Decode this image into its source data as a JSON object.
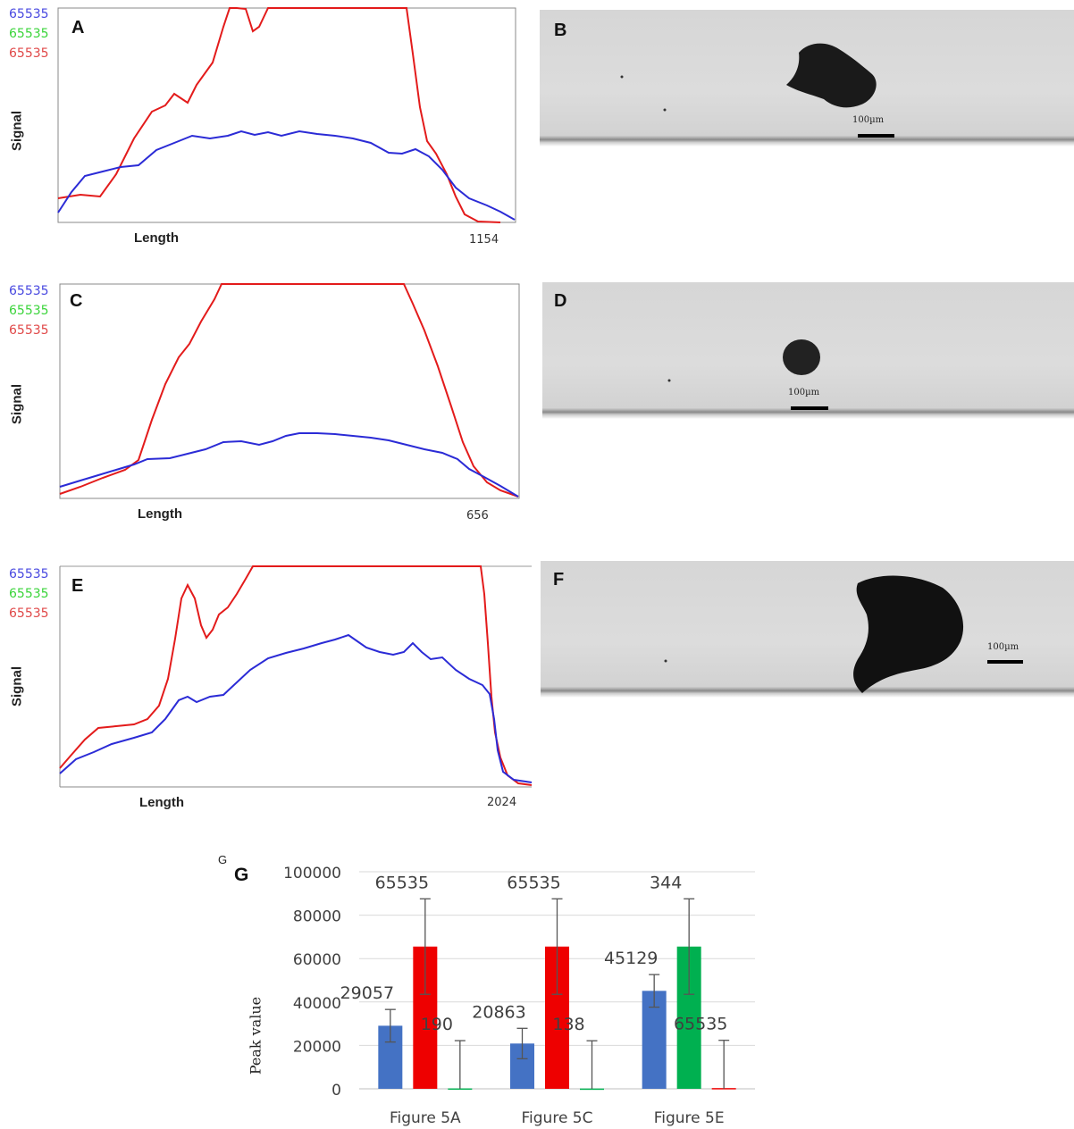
{
  "colors": {
    "blue": "#2b2bd6",
    "red": "#e31b1b",
    "green": "#22cc22",
    "bar_blue": "#4472c4",
    "bar_red": "#ee0000",
    "bar_green": "#00b050"
  },
  "profiles": [
    {
      "letter": "A",
      "channels": [
        "65535",
        "65535",
        "65535"
      ],
      "ylabel": "Signal",
      "xlabel": "Length",
      "xmax": "1154"
    },
    {
      "letter": "C",
      "channels": [
        "65535",
        "65535",
        "65535"
      ],
      "ylabel": "Signal",
      "xlabel": "Length",
      "xmax": "656"
    },
    {
      "letter": "E",
      "channels": [
        "65535",
        "65535",
        "65535"
      ],
      "ylabel": "Signal",
      "xlabel": "Length",
      "xmax": "2024"
    }
  ],
  "images": [
    {
      "letter": "B",
      "scalebar": "100µm"
    },
    {
      "letter": "D",
      "scalebar": "100µm"
    },
    {
      "letter": "F",
      "scalebar": "100µm"
    }
  ],
  "bar_panel": {
    "small_letter": "G",
    "letter": "G"
  },
  "chart_data": {
    "type": "bar",
    "categories": [
      "Figure 5A",
      "Figure 5C",
      "Figure 5E"
    ],
    "ylabel": "Peak value",
    "ylim": [
      0,
      100000
    ],
    "yticks": [
      "0",
      "20000",
      "40000",
      "60000",
      "80000",
      "100000"
    ],
    "grid": true,
    "series": [
      {
        "values": [
          29057,
          20863,
          45129
        ],
        "errors": [
          7500,
          7000,
          7500
        ]
      },
      {
        "values": [
          65535,
          65535,
          344
        ],
        "errors": [
          22000,
          22000,
          22000
        ]
      },
      {
        "values": [
          190,
          138,
          65535
        ],
        "errors": [
          22000,
          22000,
          22000
        ]
      }
    ],
    "data_labels": [
      [
        "29057",
        "65535",
        "190"
      ],
      [
        "20863",
        "65535",
        "138"
      ],
      [
        "45129",
        "344",
        "65535"
      ]
    ]
  }
}
